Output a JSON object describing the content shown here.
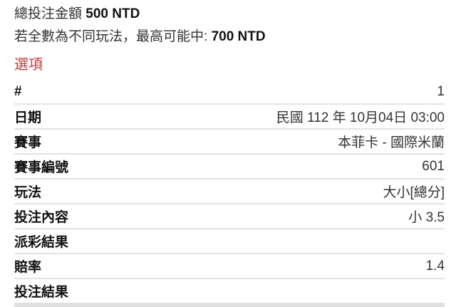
{
  "summary": {
    "total_label": "總投注金額",
    "total_value": "500 NTD",
    "max_label": "若全數為不同玩法，最高可能中:",
    "max_value": "700 NTD"
  },
  "section_title": "選項",
  "section_color": "#c0393b",
  "rows": [
    {
      "k": "#",
      "v": "1"
    },
    {
      "k": "日期",
      "v": "民國 112 年 10月04日 03:00"
    },
    {
      "k": "賽事",
      "v": "本菲卡 - 國際米蘭"
    },
    {
      "k": "賽事編號",
      "v": "601"
    },
    {
      "k": "玩法",
      "v": "大小[總分]"
    },
    {
      "k": "投注內容",
      "v": "小 3.5"
    },
    {
      "k": "派彩結果",
      "v": ""
    },
    {
      "k": "賠率",
      "v": "1.4"
    },
    {
      "k": "投注結果",
      "v": ""
    }
  ]
}
